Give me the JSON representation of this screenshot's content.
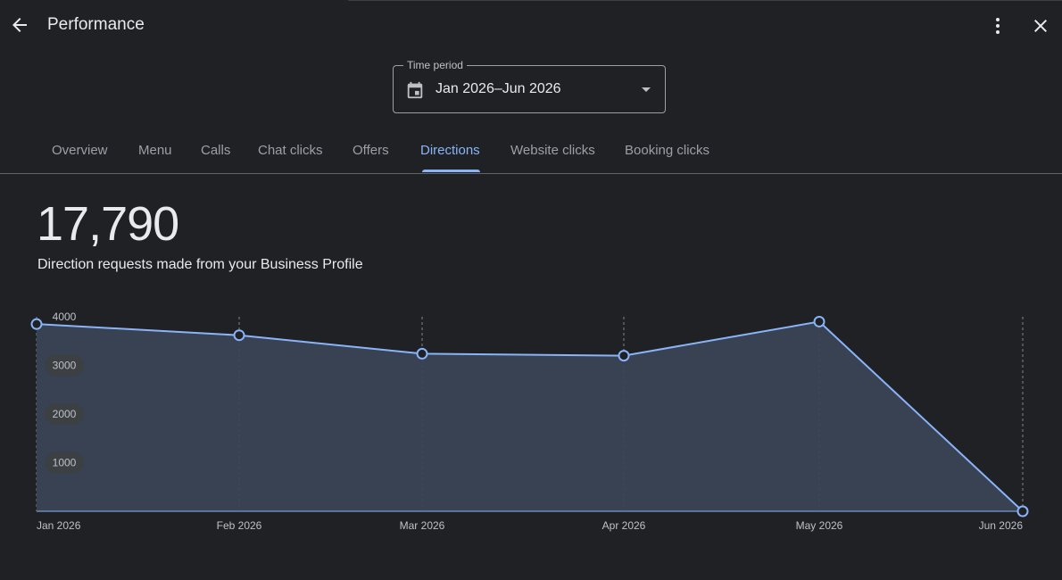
{
  "header": {
    "title": "Performance",
    "back_icon": "arrow-back-icon",
    "more_icon": "more-vert-icon",
    "close_icon": "close-icon"
  },
  "time_period": {
    "label": "Time period",
    "value": "Jan 2026–Jun 2026",
    "icon": "calendar-icon"
  },
  "tabs": [
    {
      "label": "Overview"
    },
    {
      "label": "Menu"
    },
    {
      "label": "Calls"
    },
    {
      "label": "Chat clicks"
    },
    {
      "label": "Offers"
    },
    {
      "label": "Directions",
      "active": true
    },
    {
      "label": "Website clicks"
    },
    {
      "label": "Booking clicks"
    }
  ],
  "summary": {
    "total": "17,790",
    "description": "Direction requests made from your Business Profile"
  },
  "colors": {
    "background": "#202124",
    "accent": "#8ab4f8",
    "area_fill": "#3a4456"
  },
  "chart_data": {
    "type": "area",
    "categories": [
      "Jan 2026",
      "Feb 2026",
      "Mar 2026",
      "Apr 2026",
      "May 2026",
      "Jun 2026"
    ],
    "values": [
      3850,
      3620,
      3240,
      3200,
      3900,
      0
    ],
    "y_ticks": [
      1000,
      2000,
      3000,
      4000
    ],
    "ylim": [
      0,
      4000
    ],
    "grid": "vertical dashed"
  }
}
